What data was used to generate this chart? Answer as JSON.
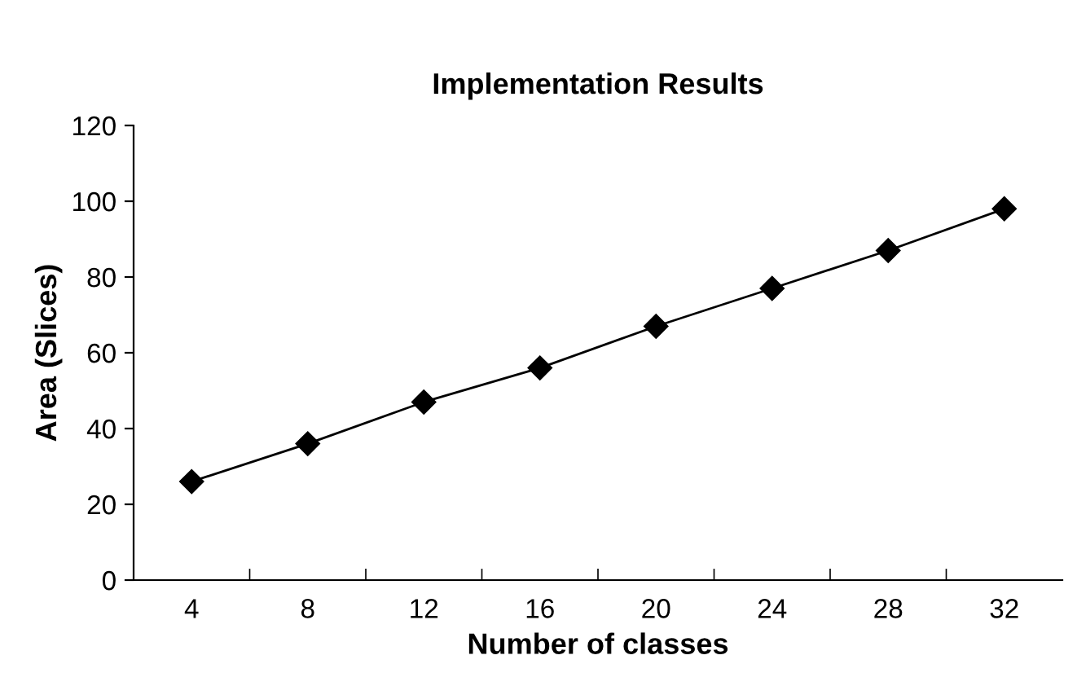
{
  "chart_data": {
    "type": "line",
    "title": "Implementation Results",
    "xlabel": "Number of classes",
    "ylabel": "Area (Slices)",
    "categories": [
      "4",
      "8",
      "12",
      "16",
      "20",
      "24",
      "28",
      "32"
    ],
    "series": [
      {
        "color": "#000000",
        "values": [
          26,
          36,
          47,
          56,
          67,
          77,
          87,
          98
        ]
      }
    ],
    "ylim": [
      0,
      120
    ],
    "yticks": [
      0,
      20,
      40,
      60,
      80,
      100,
      120
    ],
    "grid": false,
    "legend": false,
    "marker": "diamond",
    "line_style": "solid"
  }
}
